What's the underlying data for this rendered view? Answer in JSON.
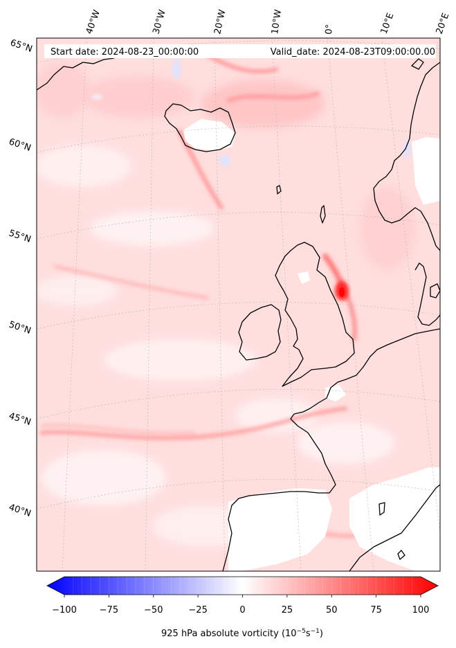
{
  "header": {
    "start_date": "Start date: 2024-08-23_00:00:00",
    "valid_date": "Valid_date: 2024-08-23T09:00:00.00"
  },
  "map": {
    "projection": "conic",
    "lon_labels": [
      "40°W",
      "30°W",
      "20°W",
      "10°W",
      "0°",
      "10°E",
      "20°E"
    ],
    "lat_labels": [
      "65°N",
      "60°N",
      "55°N",
      "50°N",
      "45°N",
      "40°N"
    ],
    "colors": {
      "negative": "#0000ff",
      "zero": "#ffffff",
      "positive": "#ff0000",
      "coast": "#000000"
    }
  },
  "colorbar": {
    "ticks": [
      "−100",
      "−75",
      "−50",
      "−25",
      "0",
      "25",
      "50",
      "75",
      "100"
    ],
    "label_main": "925 hPa absolute vorticity (10",
    "label_exp1": "−5",
    "label_mid": "s",
    "label_exp2": "−1",
    "label_end": ")",
    "range": [
      -100,
      100
    ],
    "extend": "both",
    "cmap": "bwr"
  }
}
